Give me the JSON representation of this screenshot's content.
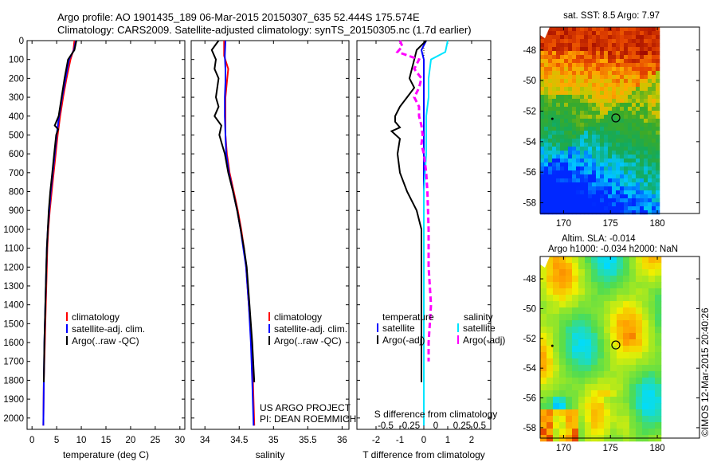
{
  "header": {
    "line1": "Argo profile: AO 1901435_189 06-Mar-2015 20150307_635 52.444S 175.574E",
    "line2": "Climatology: CARS2009. Satellite-adjusted climatology: synTS_20150305.nc (1.7d earlier)"
  },
  "colors": {
    "climatology": "#ff0000",
    "satellite": "#0000ff",
    "argo": "#000000",
    "salinity_sat": "#00e5ff",
    "salinity_argo": "#ff00ff"
  },
  "chart_data": [
    {
      "type": "line",
      "name": "temperature",
      "xlabel": "temperature (deg C)",
      "ylabel": "",
      "xlim": [
        -1,
        31
      ],
      "ylim": [
        2060,
        0
      ],
      "xticks": [
        "0",
        "5",
        "10",
        "15",
        "20",
        "25",
        "30"
      ],
      "yticks": [
        "0",
        "100",
        "200",
        "300",
        "400",
        "500",
        "600",
        "700",
        "800",
        "900",
        "1000",
        "1100",
        "1200",
        "1300",
        "1400",
        "1500",
        "1600",
        "1700",
        "1800",
        "1900",
        "2000"
      ],
      "legend": [
        "climatology",
        "satellite-adj. clim.",
        "Argo(..raw -QC)"
      ],
      "series": [
        {
          "name": "climatology",
          "color_key": "climatology",
          "points": [
            [
              8.6,
              0
            ],
            [
              8.4,
              50
            ],
            [
              7.8,
              100
            ],
            [
              7.0,
              200
            ],
            [
              6.3,
              300
            ],
            [
              5.7,
              400
            ],
            [
              5.2,
              500
            ],
            [
              4.8,
              600
            ],
            [
              4.4,
              700
            ],
            [
              4.0,
              800
            ],
            [
              3.6,
              900
            ],
            [
              3.3,
              1000
            ],
            [
              3.1,
              1100
            ],
            [
              3.0,
              1200
            ],
            [
              2.8,
              1400
            ],
            [
              2.6,
              1600
            ],
            [
              2.4,
              1800
            ],
            [
              2.3,
              2040
            ]
          ]
        },
        {
          "name": "satellite-adj. clim.",
          "color_key": "satellite",
          "points": [
            [
              8.9,
              0
            ],
            [
              8.5,
              50
            ],
            [
              7.5,
              100
            ],
            [
              6.8,
              200
            ],
            [
              6.1,
              300
            ],
            [
              5.5,
              400
            ],
            [
              5.0,
              500
            ],
            [
              4.6,
              600
            ],
            [
              4.2,
              700
            ],
            [
              3.8,
              800
            ],
            [
              3.5,
              900
            ],
            [
              3.2,
              1000
            ],
            [
              3.0,
              1100
            ],
            [
              2.9,
              1200
            ],
            [
              2.7,
              1400
            ],
            [
              2.5,
              1600
            ],
            [
              2.4,
              1800
            ],
            [
              2.3,
              2040
            ]
          ]
        },
        {
          "name": "Argo(..raw -QC)",
          "color_key": "argo",
          "points": [
            [
              9.0,
              0
            ],
            [
              8.6,
              50
            ],
            [
              7.3,
              100
            ],
            [
              6.6,
              200
            ],
            [
              6.0,
              300
            ],
            [
              5.4,
              400
            ],
            [
              4.6,
              450
            ],
            [
              5.3,
              470
            ],
            [
              4.9,
              500
            ],
            [
              4.5,
              600
            ],
            [
              4.1,
              700
            ],
            [
              3.7,
              800
            ],
            [
              3.4,
              900
            ],
            [
              3.2,
              1000
            ],
            [
              3.0,
              1100
            ],
            [
              2.9,
              1200
            ],
            [
              2.7,
              1400
            ],
            [
              2.5,
              1600
            ],
            [
              2.4,
              1810
            ]
          ]
        }
      ]
    },
    {
      "type": "line",
      "name": "salinity",
      "xlabel": "salinity",
      "xlim": [
        33.8,
        36.1
      ],
      "ylim": [
        2060,
        0
      ],
      "xticks": [
        "34",
        "34.5",
        "35",
        "35.5",
        "36"
      ],
      "legend": [
        "climatology",
        "satellite-adj. clim.",
        "Argo(..raw -QC)"
      ],
      "series": [
        {
          "name": "climatology",
          "color_key": "climatology",
          "points": [
            [
              34.28,
              0
            ],
            [
              34.28,
              80
            ],
            [
              34.34,
              150
            ],
            [
              34.32,
              220
            ],
            [
              34.3,
              300
            ],
            [
              34.3,
              400
            ],
            [
              34.3,
              500
            ],
            [
              34.32,
              600
            ],
            [
              34.36,
              700
            ],
            [
              34.42,
              800
            ],
            [
              34.48,
              900
            ],
            [
              34.53,
              1000
            ],
            [
              34.57,
              1100
            ],
            [
              34.6,
              1200
            ],
            [
              34.64,
              1400
            ],
            [
              34.68,
              1600
            ],
            [
              34.7,
              1800
            ],
            [
              34.72,
              2040
            ]
          ]
        },
        {
          "name": "satellite-adj. clim.",
          "color_key": "satellite",
          "points": [
            [
              34.3,
              0
            ],
            [
              34.29,
              80
            ],
            [
              34.3,
              150
            ],
            [
              34.3,
              220
            ],
            [
              34.29,
              300
            ],
            [
              34.29,
              400
            ],
            [
              34.3,
              500
            ],
            [
              34.31,
              600
            ],
            [
              34.35,
              700
            ],
            [
              34.41,
              800
            ],
            [
              34.47,
              900
            ],
            [
              34.52,
              1000
            ],
            [
              34.56,
              1100
            ],
            [
              34.6,
              1200
            ],
            [
              34.64,
              1400
            ],
            [
              34.67,
              1600
            ],
            [
              34.69,
              1800
            ],
            [
              34.71,
              2040
            ]
          ]
        },
        {
          "name": "Argo(..raw -QC)",
          "color_key": "argo",
          "points": [
            [
              34.2,
              0
            ],
            [
              34.1,
              50
            ],
            [
              34.16,
              100
            ],
            [
              34.14,
              150
            ],
            [
              34.2,
              200
            ],
            [
              34.18,
              250
            ],
            [
              34.16,
              300
            ],
            [
              34.2,
              350
            ],
            [
              34.14,
              400
            ],
            [
              34.24,
              450
            ],
            [
              34.21,
              500
            ],
            [
              34.25,
              550
            ],
            [
              34.29,
              600
            ],
            [
              34.34,
              700
            ],
            [
              34.41,
              800
            ],
            [
              34.47,
              900
            ],
            [
              34.52,
              1000
            ],
            [
              34.57,
              1100
            ],
            [
              34.61,
              1200
            ],
            [
              34.65,
              1400
            ],
            [
              34.69,
              1600
            ],
            [
              34.72,
              1810
            ]
          ]
        }
      ]
    },
    {
      "type": "line",
      "name": "difference",
      "xlabel": "T difference from climatology",
      "xlabel_top": "S difference from climatology",
      "xlim": [
        -2.8,
        2.8
      ],
      "ylim": [
        2060,
        0
      ],
      "xticks": [
        "-2",
        "-1",
        "0",
        "1",
        "2"
      ],
      "xticks_top": [
        "-0.5",
        "-0.25",
        "0",
        "0.25",
        "0.5"
      ],
      "legend_left_title": "temperature",
      "legend_right_title": "salinity",
      "legend": [
        "satellite",
        "Argo(-adj)",
        "satellite",
        "Argo(-adj)"
      ],
      "series": [
        {
          "name": "satellite",
          "color_key": "satellite",
          "points": [
            [
              0.1,
              0
            ],
            [
              -0.1,
              50
            ],
            [
              0.0,
              100
            ],
            [
              0.0,
              200
            ],
            [
              0.0,
              300
            ],
            [
              0.0,
              400
            ],
            [
              0.0,
              500
            ],
            [
              0.0,
              600
            ],
            [
              0.0,
              800
            ],
            [
              0.0,
              1000
            ],
            [
              0.0,
              1200
            ],
            [
              0.0,
              1400
            ],
            [
              0.0,
              1600
            ],
            [
              0.0,
              1800
            ],
            [
              0.0,
              2040
            ]
          ]
        },
        {
          "name": "Argo(-adj)",
          "color_key": "argo",
          "points": [
            [
              0.1,
              0
            ],
            [
              -0.3,
              50
            ],
            [
              -0.4,
              100
            ],
            [
              -0.5,
              150
            ],
            [
              -0.6,
              200
            ],
            [
              -0.4,
              250
            ],
            [
              -0.7,
              300
            ],
            [
              -1.0,
              350
            ],
            [
              -1.2,
              400
            ],
            [
              -1.2,
              430
            ],
            [
              -1.0,
              460
            ],
            [
              -1.35,
              480
            ],
            [
              -1.0,
              520
            ],
            [
              -1.1,
              600
            ],
            [
              -1.0,
              700
            ],
            [
              -0.7,
              800
            ],
            [
              -0.3,
              900
            ],
            [
              -0.1,
              1000
            ],
            [
              -0.1,
              1200
            ],
            [
              -0.1,
              1400
            ],
            [
              -0.1,
              1600
            ],
            [
              -0.1,
              1810
            ]
          ]
        },
        {
          "name": "satellite",
          "color_key": "salinity_sat",
          "points": [
            [
              1.0,
              0
            ],
            [
              0.9,
              60
            ],
            [
              0.3,
              100
            ],
            [
              0.2,
              200
            ],
            [
              0.2,
              300
            ],
            [
              0.1,
              400
            ],
            [
              0.1,
              500
            ],
            [
              0.1,
              600
            ],
            [
              0.0,
              800
            ],
            [
              0.0,
              1000
            ],
            [
              0.0,
              1200
            ],
            [
              0.0,
              1400
            ],
            [
              0.0,
              1600
            ],
            [
              0.0,
              1800
            ],
            [
              0.0,
              2040
            ]
          ]
        },
        {
          "name": "Argo(-adj)",
          "color_key": "salinity_argo",
          "points": [
            [
              -1.0,
              0
            ],
            [
              -0.9,
              30
            ],
            [
              -1.1,
              60
            ],
            [
              -0.2,
              100
            ],
            [
              -0.4,
              150
            ],
            [
              -0.1,
              200
            ],
            [
              -0.2,
              250
            ],
            [
              -0.4,
              300
            ],
            [
              -0.2,
              350
            ],
            [
              -0.2,
              400
            ],
            [
              -0.1,
              450
            ],
            [
              -0.05,
              500
            ],
            [
              -0.1,
              550
            ],
            [
              0.0,
              600
            ],
            [
              0.1,
              700
            ],
            [
              0.15,
              800
            ],
            [
              0.2,
              1000
            ],
            [
              0.2,
              1200
            ],
            [
              0.3,
              1400
            ],
            [
              0.2,
              1600
            ],
            [
              0.2,
              1700
            ]
          ]
        }
      ]
    },
    {
      "type": "heatmap",
      "name": "sst_map",
      "title": "sat. SST: 8.5 Argo: 7.97",
      "xticks": [
        "170",
        "175",
        "180"
      ],
      "yticks": [
        "-48",
        "-50",
        "-52",
        "-54",
        "-56",
        "-58"
      ],
      "xlim": [
        167.5,
        184.5
      ],
      "ylim": [
        -58.7,
        -46.5
      ],
      "marker": [
        175.574,
        -52.444
      ]
    },
    {
      "type": "heatmap",
      "name": "sla_map",
      "title": "Altim. SLA: -0.014",
      "subtitle": "Argo h1000: -0.034 h2000: NaN",
      "xticks": [
        "170",
        "175",
        "180"
      ],
      "yticks": [
        "-48",
        "-50",
        "-52",
        "-54",
        "-56",
        "-58"
      ],
      "xlim": [
        167.5,
        184.5
      ],
      "ylim": [
        -58.7,
        -46.5
      ],
      "marker": [
        175.574,
        -52.444
      ]
    }
  ],
  "panels": {
    "salinity": {
      "credit1": "US ARGO PROJECT",
      "credit2": "PI: DEAN ROEMMICH"
    }
  },
  "watermark": "©IMOS 12-Mar-2015 20:40:26"
}
